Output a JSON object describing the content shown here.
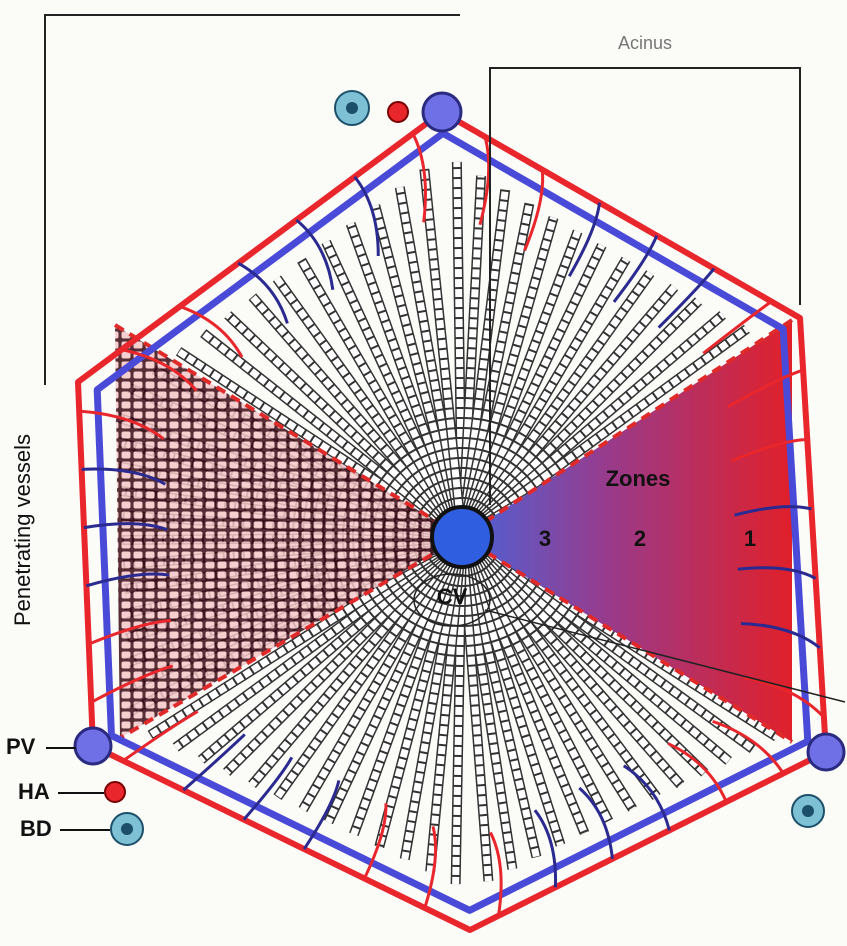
{
  "labels": {
    "acinus": "Acinus",
    "penetrating_vessels": "Penetrating vessels",
    "zones_title": "Zones",
    "zones": [
      "3",
      "2",
      "1"
    ],
    "cv": "CV",
    "pv": "PV",
    "ha": "HA",
    "bd": "BD"
  }
}
